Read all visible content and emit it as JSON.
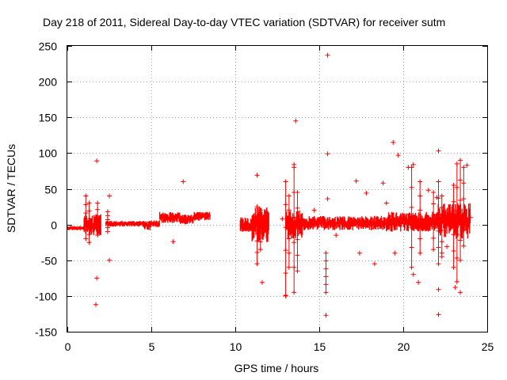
{
  "chart_data": {
    "type": "scatter",
    "title": "Day 218 of 2011, Sidereal Day-to-day VTEC variation (SDTVAR) for receiver sutm",
    "xlabel": "GPS time / hours",
    "ylabel": "SDTVAR / TECUs",
    "xlim": [
      0,
      25
    ],
    "ylim": [
      -150,
      250
    ],
    "xticks": [
      0,
      5,
      10,
      15,
      20,
      25
    ],
    "yticks": [
      -150,
      -100,
      -50,
      0,
      50,
      100,
      150,
      200,
      250
    ],
    "grid": true,
    "marker": "+",
    "color": "#ff0000",
    "series": [
      {
        "name": "SDTVAR",
        "segments": [
          {
            "t0": 0.0,
            "t1": 1.0,
            "lo": -8,
            "hi": -2
          },
          {
            "t0": 1.0,
            "t1": 2.0,
            "lo": -15,
            "hi": 15
          },
          {
            "t0": 2.3,
            "t1": 4.5,
            "lo": -3,
            "hi": 5
          },
          {
            "t0": 4.5,
            "t1": 5.0,
            "lo": -8,
            "hi": 6
          },
          {
            "t0": 5.0,
            "t1": 5.5,
            "lo": -4,
            "hi": 6
          },
          {
            "t0": 5.5,
            "t1": 6.7,
            "lo": 2,
            "hi": 18
          },
          {
            "t0": 6.7,
            "t1": 7.5,
            "lo": 0,
            "hi": 14
          },
          {
            "t0": 7.5,
            "t1": 8.5,
            "lo": 5,
            "hi": 18
          },
          {
            "t0": 10.3,
            "t1": 11.0,
            "lo": -10,
            "hi": 10
          },
          {
            "t0": 11.0,
            "t1": 12.0,
            "lo": -25,
            "hi": 25
          },
          {
            "t0": 13.0,
            "t1": 14.0,
            "lo": -20,
            "hi": 20
          },
          {
            "t0": 14.0,
            "t1": 19.0,
            "lo": -8,
            "hi": 12
          },
          {
            "t0": 19.0,
            "t1": 22.0,
            "lo": -10,
            "hi": 18
          },
          {
            "t0": 22.0,
            "t1": 24.0,
            "lo": -20,
            "hi": 30
          }
        ],
        "spikes": [
          {
            "x": 1.1,
            "lo": -20,
            "hi": 40
          },
          {
            "x": 1.3,
            "lo": -25,
            "hi": 30
          },
          {
            "x": 1.8,
            "lo": -15,
            "hi": 30
          },
          {
            "x": 2.4,
            "lo": -10,
            "hi": 18
          },
          {
            "x": 11.3,
            "lo": -55,
            "hi": 25
          },
          {
            "x": 11.5,
            "lo": -35,
            "hi": 20
          },
          {
            "x": 13.0,
            "lo": -100,
            "hi": 60
          },
          {
            "x": 13.2,
            "lo": -60,
            "hi": 40
          },
          {
            "x": 13.5,
            "lo": -95,
            "hi": 80
          },
          {
            "x": 13.7,
            "lo": -65,
            "hi": 45
          },
          {
            "x": 15.4,
            "lo": -95,
            "hi": -40
          },
          {
            "x": 20.5,
            "lo": -60,
            "hi": 80
          },
          {
            "x": 21.0,
            "lo": -40,
            "hi": 60
          },
          {
            "x": 21.8,
            "lo": -35,
            "hi": 45
          },
          {
            "x": 22.1,
            "lo": -55,
            "hi": 60
          },
          {
            "x": 22.3,
            "lo": -40,
            "hi": 40
          },
          {
            "x": 23.0,
            "lo": -60,
            "hi": 55
          },
          {
            "x": 23.2,
            "lo": -80,
            "hi": 85
          },
          {
            "x": 23.4,
            "lo": -50,
            "hi": 90
          },
          {
            "x": 23.6,
            "lo": -30,
            "hi": 80
          }
        ],
        "outliers": [
          [
            1.75,
            89
          ],
          [
            1.75,
            -75
          ],
          [
            1.7,
            -112
          ],
          [
            2.5,
            40
          ],
          [
            2.5,
            -50
          ],
          [
            6.9,
            60
          ],
          [
            6.3,
            -24
          ],
          [
            11.3,
            69
          ],
          [
            11.6,
            -81
          ],
          [
            13.6,
            145
          ],
          [
            13.5,
            84
          ],
          [
            13.0,
            -99
          ],
          [
            15.5,
            237
          ],
          [
            15.5,
            99
          ],
          [
            15.4,
            -127
          ],
          [
            15.5,
            36
          ],
          [
            17.2,
            61
          ],
          [
            17.4,
            -40
          ],
          [
            17.8,
            44
          ],
          [
            18.3,
            -55
          ],
          [
            18.8,
            58
          ],
          [
            19.4,
            115
          ],
          [
            19.7,
            97
          ],
          [
            19.5,
            -40
          ],
          [
            20.3,
            80
          ],
          [
            20.6,
            84
          ],
          [
            20.6,
            -70
          ],
          [
            20.9,
            -81
          ],
          [
            22.1,
            103
          ],
          [
            22.1,
            -91
          ],
          [
            22.1,
            -126
          ],
          [
            22.6,
            -31
          ],
          [
            22.3,
            -45
          ],
          [
            23.1,
            -88
          ],
          [
            23.4,
            -95
          ],
          [
            23.8,
            83
          ],
          [
            21.5,
            48
          ],
          [
            22.0,
            38
          ],
          [
            16.0,
            -15
          ],
          [
            14.7,
            20
          ],
          [
            12.8,
            8
          ],
          [
            19.0,
            30
          ],
          [
            24.0,
            10
          ]
        ]
      }
    ]
  }
}
